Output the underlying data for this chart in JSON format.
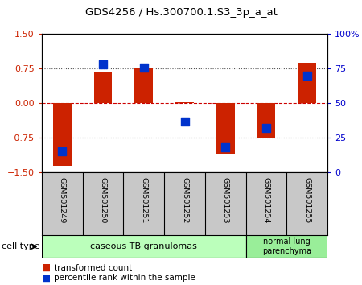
{
  "title": "GDS4256 / Hs.300700.1.S3_3p_a_at",
  "samples": [
    "GSM501249",
    "GSM501250",
    "GSM501251",
    "GSM501252",
    "GSM501253",
    "GSM501254",
    "GSM501255"
  ],
  "red_values": [
    -1.35,
    0.68,
    0.78,
    0.02,
    -1.1,
    -0.77,
    0.88
  ],
  "blue_values_pct": [
    15,
    78,
    76,
    37,
    18,
    32,
    70
  ],
  "ylim_left": [
    -1.5,
    1.5
  ],
  "yticks_left": [
    -1.5,
    -0.75,
    0,
    0.75,
    1.5
  ],
  "yticks_right": [
    0,
    25,
    50,
    75,
    100
  ],
  "left_color": "#cc2200",
  "right_color": "#0000cc",
  "bar_color": "#cc2200",
  "dot_color": "#0033cc",
  "sample_box_color": "#c8c8c8",
  "group1_color": "#bbffbb",
  "group2_color": "#99ee99",
  "group1_label": "caseous TB granulomas",
  "group2_label": "normal lung\nparenchyma",
  "group1_samples": 5,
  "group2_samples": 2,
  "legend_red": "transformed count",
  "legend_blue": "percentile rank within the sample",
  "xlabel_cell_type": "cell type"
}
